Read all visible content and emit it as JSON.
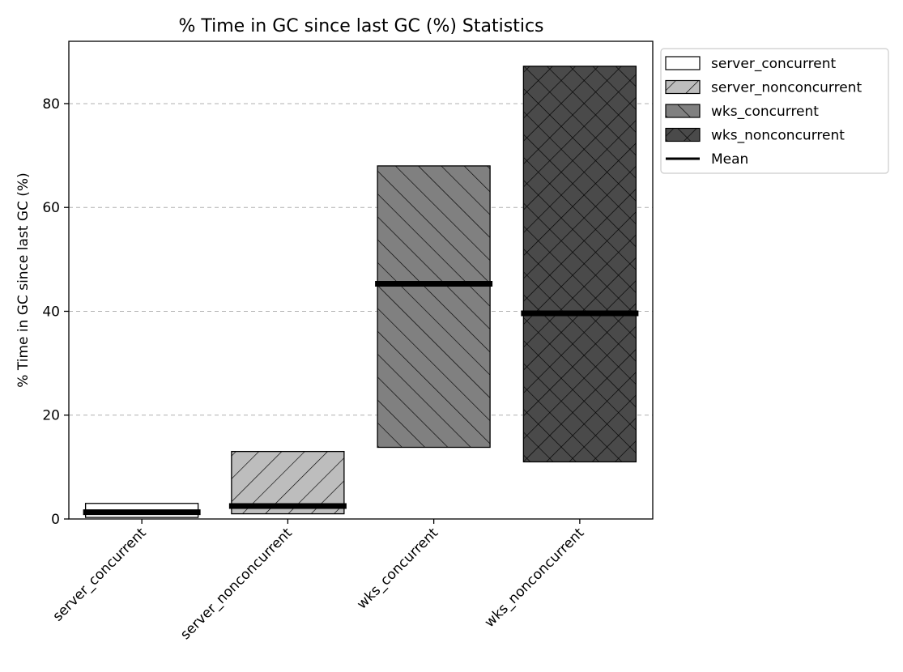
{
  "chart_data": {
    "type": "bar",
    "title": "% Time in GC since last GC (%) Statistics",
    "xlabel": "",
    "ylabel": "% Time in GC since last GC (%)",
    "ylim": [
      0,
      92
    ],
    "yticks": [
      0,
      20,
      40,
      60,
      80
    ],
    "grid": "horizontal dashed",
    "legend_placement": "outside upper right",
    "categories": [
      "server_concurrent",
      "server_nonconcurrent",
      "wks_concurrent",
      "wks_nonconcurrent"
    ],
    "series": [
      {
        "name": "server_concurrent",
        "min": 0.3,
        "max": 3.0,
        "mean": 1.3,
        "fill": "#ffffff",
        "hatch": "none"
      },
      {
        "name": "server_nonconcurrent",
        "min": 1.0,
        "max": 13.0,
        "mean": 2.5,
        "fill": "#bdbdbd",
        "hatch": "forward-diagonal"
      },
      {
        "name": "wks_concurrent",
        "min": 13.8,
        "max": 68.0,
        "mean": 45.3,
        "fill": "#808080",
        "hatch": "back-diagonal"
      },
      {
        "name": "wks_nonconcurrent",
        "min": 11.0,
        "max": 87.2,
        "mean": 39.6,
        "fill": "#4a4a4a",
        "hatch": "cross"
      }
    ],
    "mean_label": "Mean",
    "mean_color": "#000000"
  }
}
